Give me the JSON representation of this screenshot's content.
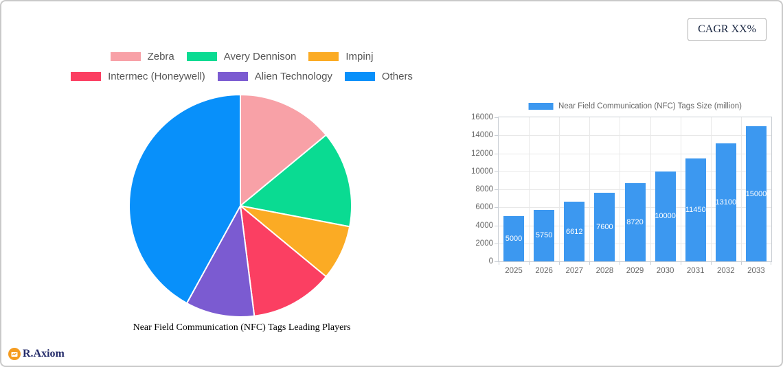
{
  "header": {
    "cagr_label": "CAGR XX%"
  },
  "logo": {
    "text": "R.Axiom",
    "icon": "bar-chart-in-circle-icon",
    "circle_color": "#F59C20",
    "text_color": "#252c6a"
  },
  "chart_data": [
    {
      "type": "pie",
      "title": "Near Field Communication (NFC) Tags Leading Players",
      "labels": [
        "Zebra",
        "Avery Dennison",
        "Impinj",
        "Intermec (Honeywell)",
        "Alien Technology",
        "Others"
      ],
      "values": [
        14,
        14,
        8,
        12,
        10,
        42
      ],
      "unit": "percent-share-estimated",
      "colors": [
        "#F8A1A7",
        "#0ADB92",
        "#FBAB24",
        "#FB3F62",
        "#7B5BD1",
        "#0890FA"
      ],
      "legend_position": "top",
      "legend_rows": [
        [
          0,
          1,
          2
        ],
        [
          3,
          4,
          5
        ]
      ],
      "start_angle_deg": 0,
      "direction": "clockwise",
      "slice_border_color": "#ffffff"
    },
    {
      "type": "bar",
      "legend": "Near Field Communication (NFC) Tags Size (million)",
      "categories": [
        "2025",
        "2026",
        "2027",
        "2028",
        "2029",
        "2030",
        "2031",
        "2032",
        "2033"
      ],
      "values": [
        5000,
        5750,
        6612,
        7600,
        8720,
        10000,
        11450,
        13100,
        15000
      ],
      "ylim": [
        0,
        16000
      ],
      "ytick_step": 2000,
      "bar_color": "#3C98F0",
      "value_label_color": "#ffffff",
      "axis_label_color": "#666666",
      "grid": true,
      "legend_position": "top"
    }
  ]
}
